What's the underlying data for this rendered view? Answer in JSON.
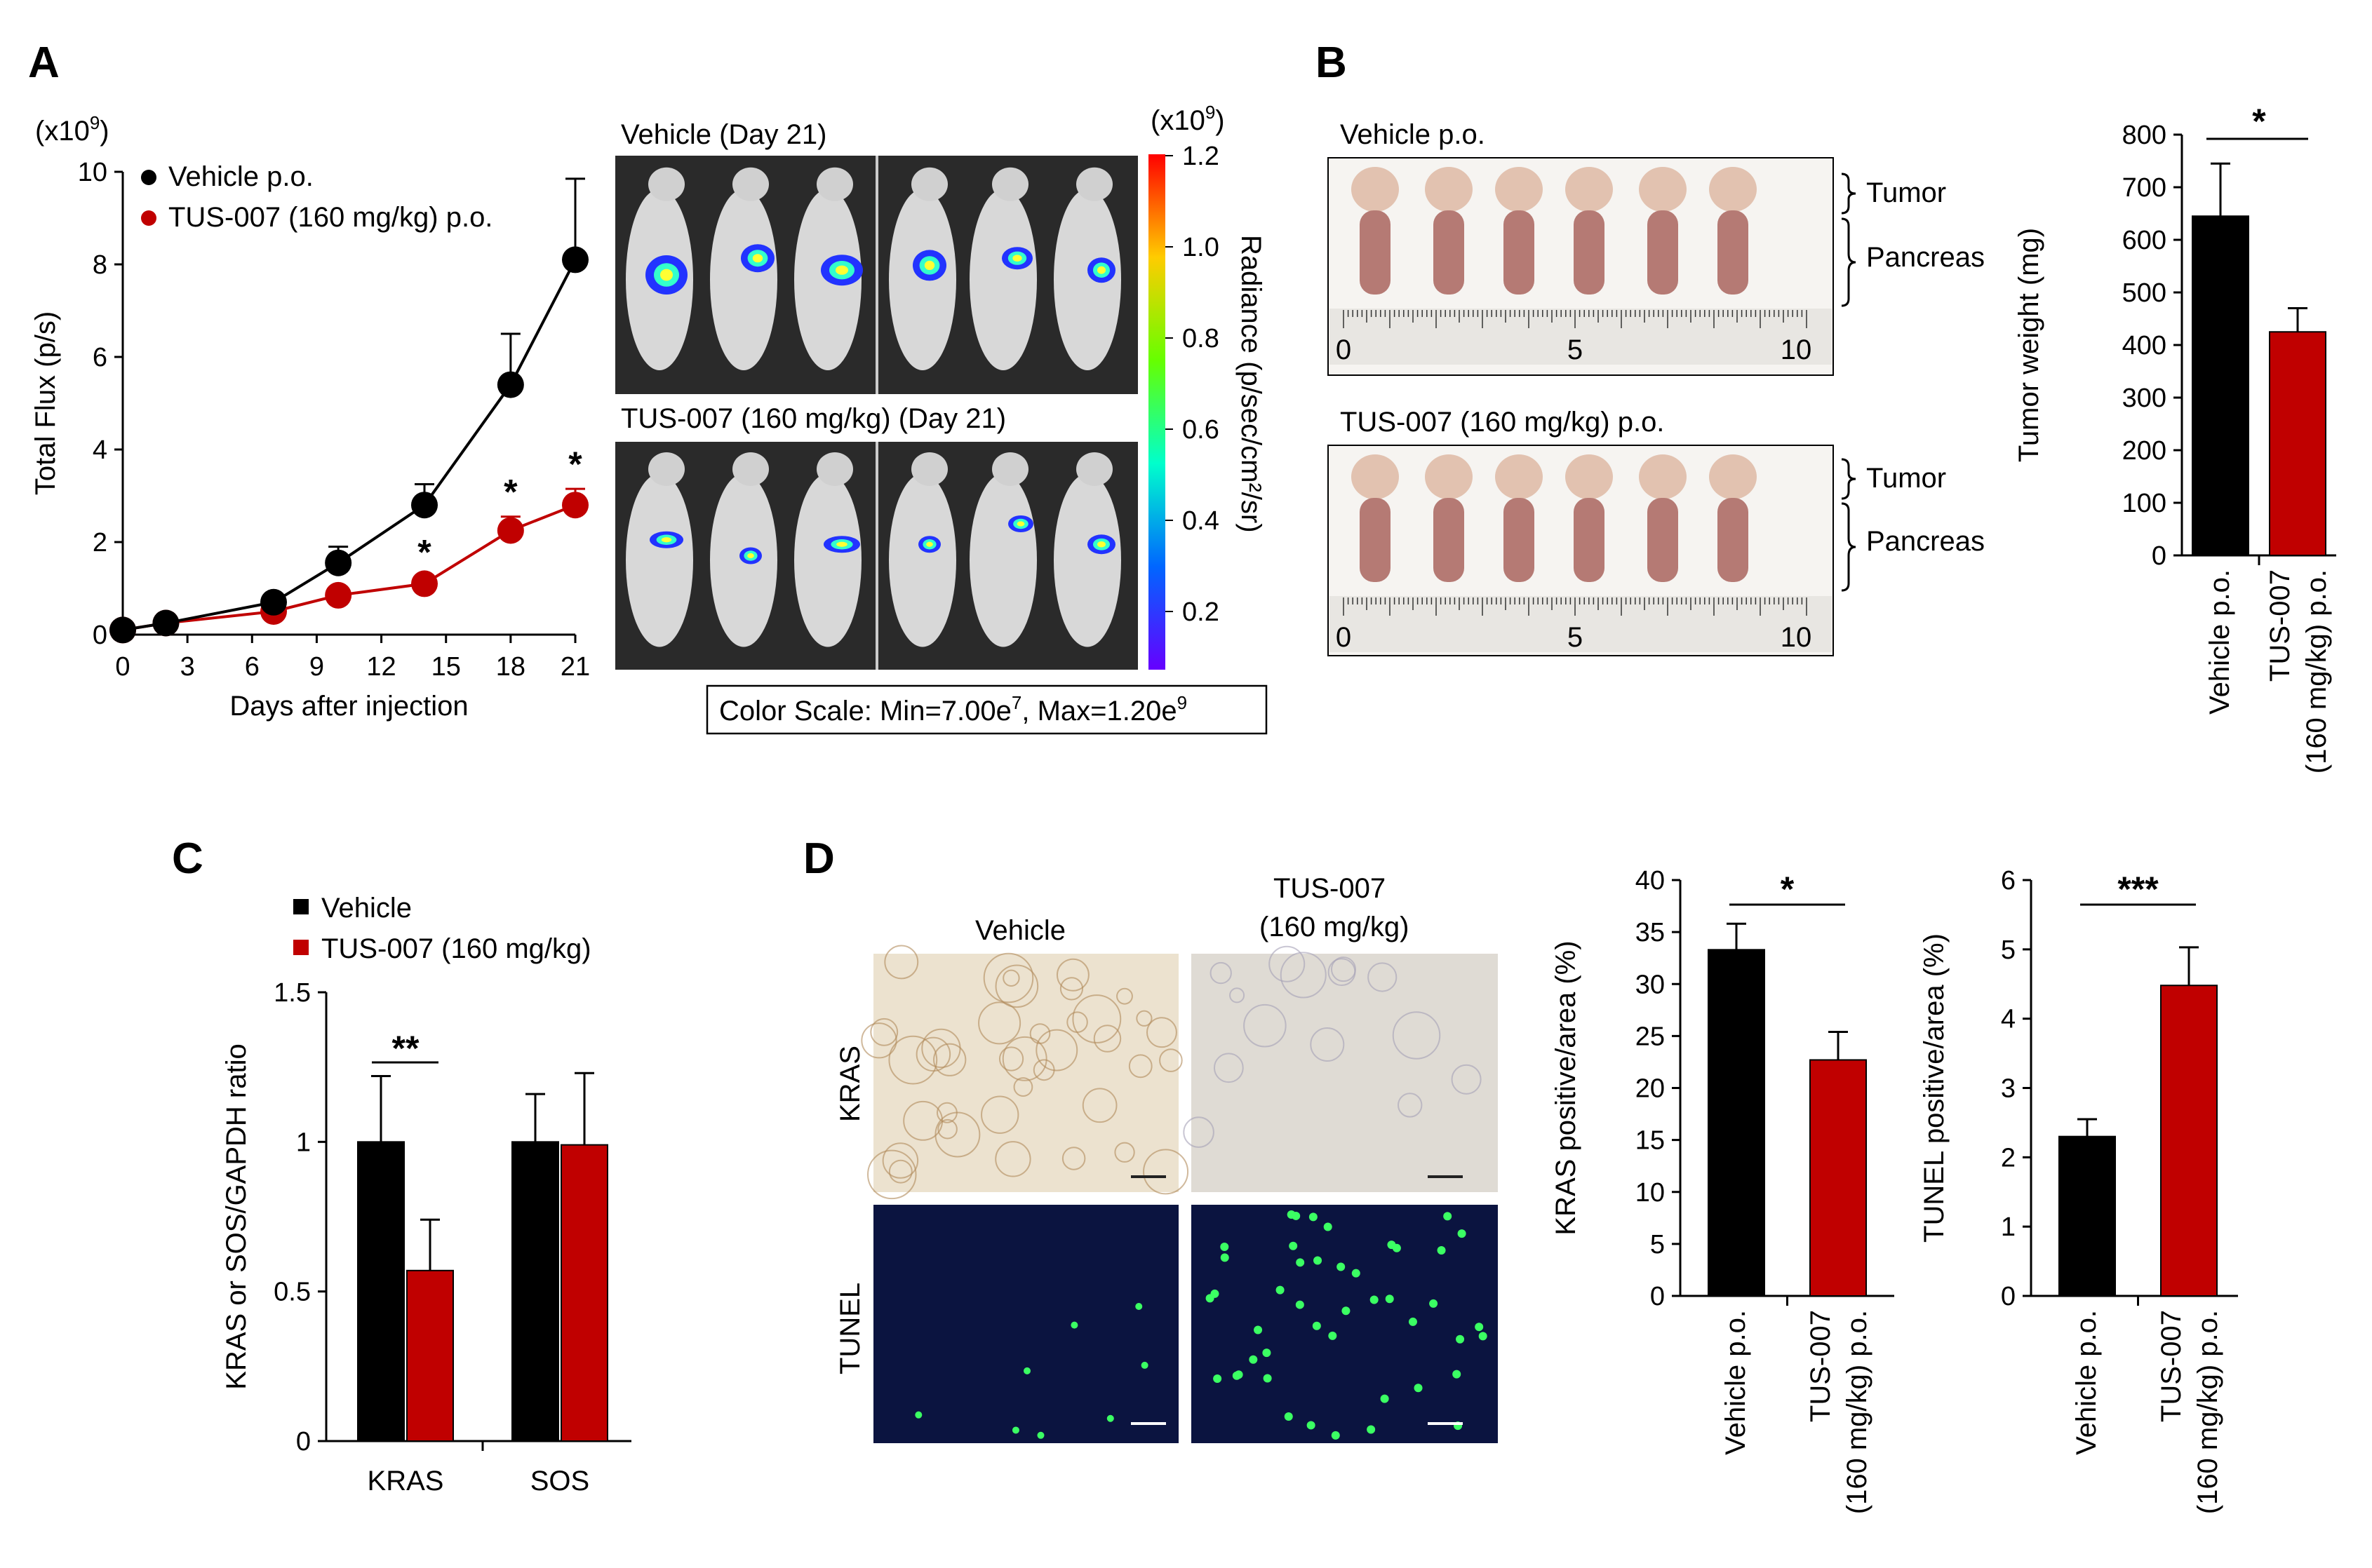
{
  "panels": {
    "a": "A",
    "b": "B",
    "c": "C",
    "d": "D"
  },
  "colors": {
    "vehicle": "#000000",
    "treat": "#c00000",
    "dark_image": "#2a2a2a",
    "tunel_bg": "#0b1440",
    "tissue": "#ece2cf",
    "tunel_dot": "#3bff63"
  },
  "A": {
    "imaging": {
      "vehicle_title": "Vehicle (Day 21)",
      "treat_title": "TUS-007 (160 mg/kg) (Day 21)",
      "colorbar_unit": "(x10",
      "colorbar_unit_exp": "9",
      "colorbar_unit_close": ")",
      "colorbar_ticks": [
        "1.2",
        "1.0",
        "0.8",
        "0.6",
        "0.4",
        "0.2"
      ],
      "colorbar_label": "Radiance (p/sec/cm²/sr)",
      "color_scale_text": "Color Scale: Min=7.00e",
      "color_scale_exp1": "7",
      "color_scale_mid": ", Max=1.20e",
      "color_scale_exp2": "9"
    }
  },
  "B": {
    "photo": {
      "vehicle_title": "Vehicle p.o.",
      "treat_title": "TUS-007 (160 mg/kg) p.o.",
      "tumor_label": "Tumor",
      "pancreas_label": "Pancreas",
      "ruler_labels": [
        "0",
        "5",
        "10"
      ]
    }
  },
  "D": {
    "images": {
      "col1": "Vehicle",
      "col2_line1": "TUS-007",
      "col2_line2": "(160 mg/kg)",
      "row1": "KRAS",
      "row2": "TUNEL"
    }
  },
  "chart_data": [
    {
      "id": "A-line",
      "type": "line",
      "ylabel": "Total Flux (p/s)",
      "xlabel": "Days after injection",
      "unit": "(x10",
      "unit_exp": "9",
      "unit_close": ")",
      "xlim": [
        0,
        21
      ],
      "ylim": [
        0,
        10
      ],
      "x_ticks": [
        0,
        3,
        6,
        9,
        12,
        15,
        18,
        21
      ],
      "y_ticks": [
        0,
        2,
        4,
        6,
        8,
        10
      ],
      "x": [
        0,
        2,
        7,
        10,
        14,
        18,
        21
      ],
      "series": [
        {
          "name": "Vehicle p.o.",
          "color": "#000000",
          "values": [
            0.1,
            0.25,
            0.7,
            1.55,
            2.8,
            5.4,
            8.1
          ],
          "err": [
            0.05,
            0.05,
            0.12,
            0.35,
            0.45,
            1.1,
            1.75
          ]
        },
        {
          "name": "TUS-007 (160 mg/kg) p.o.",
          "color": "#c00000",
          "values": [
            0.1,
            0.25,
            0.5,
            0.85,
            1.1,
            2.25,
            2.8
          ],
          "err": [
            0.05,
            0.05,
            0.1,
            0.1,
            0.15,
            0.3,
            0.35
          ]
        }
      ],
      "annotations": [
        {
          "x": 14,
          "text": "*"
        },
        {
          "x": 18,
          "text": "*"
        },
        {
          "x": 21,
          "text": "*"
        }
      ]
    },
    {
      "id": "B-bar",
      "type": "bar",
      "ylabel": "Tumor weight (mg)",
      "ylim": [
        0,
        800
      ],
      "y_ticks": [
        0,
        100,
        200,
        300,
        400,
        500,
        600,
        700,
        800
      ],
      "categories": [
        "Vehicle p.o.",
        "TUS-007 (160 mg/kg) p.o."
      ],
      "category_lines": [
        [
          "Vehicle p.o."
        ],
        [
          "TUS-007",
          "(160 mg/kg) p.o."
        ]
      ],
      "values": [
        645,
        425
      ],
      "err": [
        100,
        45
      ],
      "colors": [
        "#000000",
        "#c00000"
      ],
      "significance": "*"
    },
    {
      "id": "C-bar",
      "type": "bar",
      "ylabel": "KRAS or SOS/GAPDH ratio",
      "ylim": [
        0,
        1.5
      ],
      "y_ticks": [
        "0",
        "0.5",
        "1",
        "1.5"
      ],
      "categories": [
        "KRAS",
        "SOS"
      ],
      "series": [
        {
          "name": "Vehicle",
          "color": "#000000",
          "values": [
            1.0,
            1.0
          ],
          "err": [
            0.22,
            0.16
          ]
        },
        {
          "name": "TUS-007 (160 mg/kg)",
          "color": "#c00000",
          "values": [
            0.57,
            0.99
          ],
          "err": [
            0.17,
            0.24
          ]
        }
      ],
      "significance": {
        "category": "KRAS",
        "text": "**"
      }
    },
    {
      "id": "D-bar-kras",
      "type": "bar",
      "ylabel": "KRAS positive/area (%)",
      "ylim": [
        0,
        40
      ],
      "y_ticks": [
        0,
        5,
        10,
        15,
        20,
        25,
        30,
        35,
        40
      ],
      "categories": [
        "Vehicle p.o.",
        "TUS-007 (160 mg/kg) p.o."
      ],
      "category_lines": [
        [
          "Vehicle p.o."
        ],
        [
          "TUS-007",
          "(160 mg/kg) p.o."
        ]
      ],
      "values": [
        33.3,
        22.7
      ],
      "err": [
        2.5,
        2.7
      ],
      "colors": [
        "#000000",
        "#c00000"
      ],
      "significance": "*"
    },
    {
      "id": "D-bar-tunel",
      "type": "bar",
      "ylabel": "TUNEL positive/area (%)",
      "ylim": [
        0,
        6
      ],
      "y_ticks": [
        0,
        1,
        2,
        3,
        4,
        5,
        6
      ],
      "categories": [
        "Vehicle p.o.",
        "TUS-007 (160 mg/kg) p.o."
      ],
      "category_lines": [
        [
          "Vehicle p.o."
        ],
        [
          "TUS-007",
          "(160 mg/kg) p.o."
        ]
      ],
      "values": [
        2.3,
        4.48
      ],
      "err": [
        0.25,
        0.55
      ],
      "colors": [
        "#000000",
        "#c00000"
      ],
      "significance": "***"
    }
  ]
}
